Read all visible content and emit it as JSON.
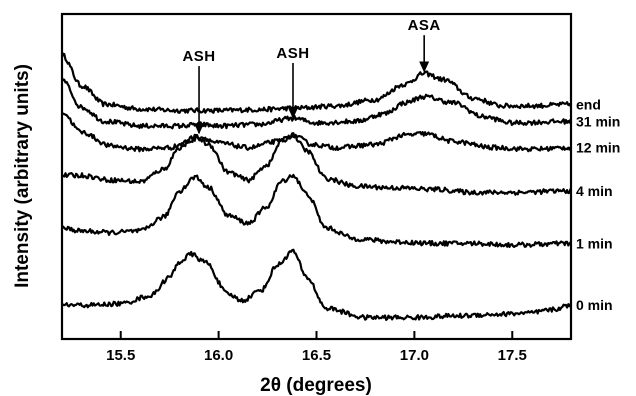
{
  "chart_data": {
    "type": "line",
    "title": "",
    "xlabel": "2θ (degrees)",
    "ylabel": "Intensity (arbitrary units)",
    "xlim": [
      15.2,
      17.8
    ],
    "ylim": [
      0,
      100
    ],
    "xticks": [
      "15.5",
      "16.0",
      "16.5",
      "17.0",
      "17.5"
    ],
    "xtick_values": [
      15.5,
      16.0,
      16.5,
      17.0,
      17.5
    ],
    "grid": false,
    "legend": "inline labels at right end of each trace",
    "series": [
      {
        "name": "end",
        "points": [
          [
            15.2,
            90
          ],
          [
            15.3,
            80
          ],
          [
            15.42,
            74
          ],
          [
            15.6,
            72.5
          ],
          [
            15.8,
            72
          ],
          [
            16.0,
            72
          ],
          [
            16.2,
            72.3
          ],
          [
            16.4,
            72.8
          ],
          [
            16.6,
            73.5
          ],
          [
            16.8,
            75.5
          ],
          [
            16.95,
            80.5
          ],
          [
            17.05,
            84
          ],
          [
            17.15,
            82
          ],
          [
            17.3,
            76
          ],
          [
            17.45,
            73.5
          ],
          [
            17.6,
            73.5
          ],
          [
            17.8,
            74
          ]
        ]
      },
      {
        "name": "31 min",
        "points": [
          [
            15.2,
            82
          ],
          [
            15.3,
            73
          ],
          [
            15.42,
            68.5
          ],
          [
            15.6,
            67
          ],
          [
            15.8,
            67
          ],
          [
            15.9,
            67.5
          ],
          [
            16.0,
            67
          ],
          [
            16.2,
            67.5
          ],
          [
            16.38,
            69.5
          ],
          [
            16.5,
            68
          ],
          [
            16.7,
            68.5
          ],
          [
            16.85,
            71
          ],
          [
            16.95,
            74.5
          ],
          [
            17.05,
            76.5
          ],
          [
            17.2,
            74.5
          ],
          [
            17.35,
            70
          ],
          [
            17.5,
            68
          ],
          [
            17.8,
            68.5
          ]
        ]
      },
      {
        "name": "12 min",
        "points": [
          [
            15.2,
            71.5
          ],
          [
            15.3,
            65
          ],
          [
            15.45,
            60.5
          ],
          [
            15.6,
            59.5
          ],
          [
            15.75,
            60
          ],
          [
            15.85,
            62
          ],
          [
            15.9,
            63.5
          ],
          [
            16.0,
            61.5
          ],
          [
            16.15,
            60
          ],
          [
            16.3,
            62
          ],
          [
            16.38,
            64
          ],
          [
            16.48,
            61
          ],
          [
            16.6,
            60
          ],
          [
            16.8,
            61
          ],
          [
            16.95,
            64
          ],
          [
            17.05,
            64.5
          ],
          [
            17.2,
            62
          ],
          [
            17.4,
            60
          ],
          [
            17.6,
            59.5
          ],
          [
            17.8,
            60
          ]
        ]
      },
      {
        "name": "4 min",
        "points": [
          [
            15.2,
            51
          ],
          [
            15.3,
            51
          ],
          [
            15.45,
            49.5
          ],
          [
            15.6,
            49
          ],
          [
            15.72,
            53
          ],
          [
            15.8,
            60
          ],
          [
            15.88,
            63.5
          ],
          [
            15.95,
            61
          ],
          [
            16.05,
            52
          ],
          [
            16.15,
            49.5
          ],
          [
            16.25,
            54.5
          ],
          [
            16.32,
            62
          ],
          [
            16.38,
            64
          ],
          [
            16.45,
            59
          ],
          [
            16.55,
            50
          ],
          [
            16.7,
            47.5
          ],
          [
            16.9,
            47
          ],
          [
            17.1,
            46.5
          ],
          [
            17.3,
            45.5
          ],
          [
            17.5,
            45.5
          ],
          [
            17.8,
            46
          ]
        ]
      },
      {
        "name": "1 min",
        "points": [
          [
            15.2,
            34
          ],
          [
            15.3,
            33
          ],
          [
            15.45,
            32.5
          ],
          [
            15.6,
            33
          ],
          [
            15.72,
            37.5
          ],
          [
            15.8,
            46
          ],
          [
            15.88,
            50.5
          ],
          [
            15.95,
            47
          ],
          [
            16.05,
            38
          ],
          [
            16.15,
            35.5
          ],
          [
            16.25,
            41
          ],
          [
            16.32,
            49
          ],
          [
            16.38,
            51
          ],
          [
            16.45,
            45
          ],
          [
            16.55,
            34
          ],
          [
            16.7,
            30.5
          ],
          [
            16.9,
            29.5
          ],
          [
            17.1,
            29
          ],
          [
            17.3,
            29
          ],
          [
            17.5,
            28.5
          ],
          [
            17.8,
            29
          ]
        ]
      },
      {
        "name": "0 min",
        "points": [
          [
            15.2,
            9
          ],
          [
            15.35,
            9
          ],
          [
            15.5,
            9.5
          ],
          [
            15.65,
            12
          ],
          [
            15.75,
            18
          ],
          [
            15.8,
            23
          ],
          [
            15.86,
            25.5
          ],
          [
            15.93,
            23
          ],
          [
            16.05,
            12.5
          ],
          [
            16.12,
            10.5
          ],
          [
            16.22,
            14
          ],
          [
            16.3,
            22
          ],
          [
            16.38,
            26.5
          ],
          [
            16.45,
            18
          ],
          [
            16.55,
            8
          ],
          [
            16.75,
            5
          ],
          [
            17.0,
            5
          ],
          [
            17.2,
            5.5
          ],
          [
            17.4,
            6
          ],
          [
            17.6,
            6.5
          ],
          [
            17.7,
            7.5
          ],
          [
            17.8,
            9
          ]
        ]
      }
    ],
    "annotations": [
      {
        "text": "ASH",
        "x": 15.9,
        "y": 64,
        "label_y": 88
      },
      {
        "text": "ASH",
        "x": 16.38,
        "y": 69,
        "label_y": 89
      },
      {
        "text": "ASA",
        "x": 17.05,
        "y": 84,
        "label_y": 98
      }
    ]
  }
}
